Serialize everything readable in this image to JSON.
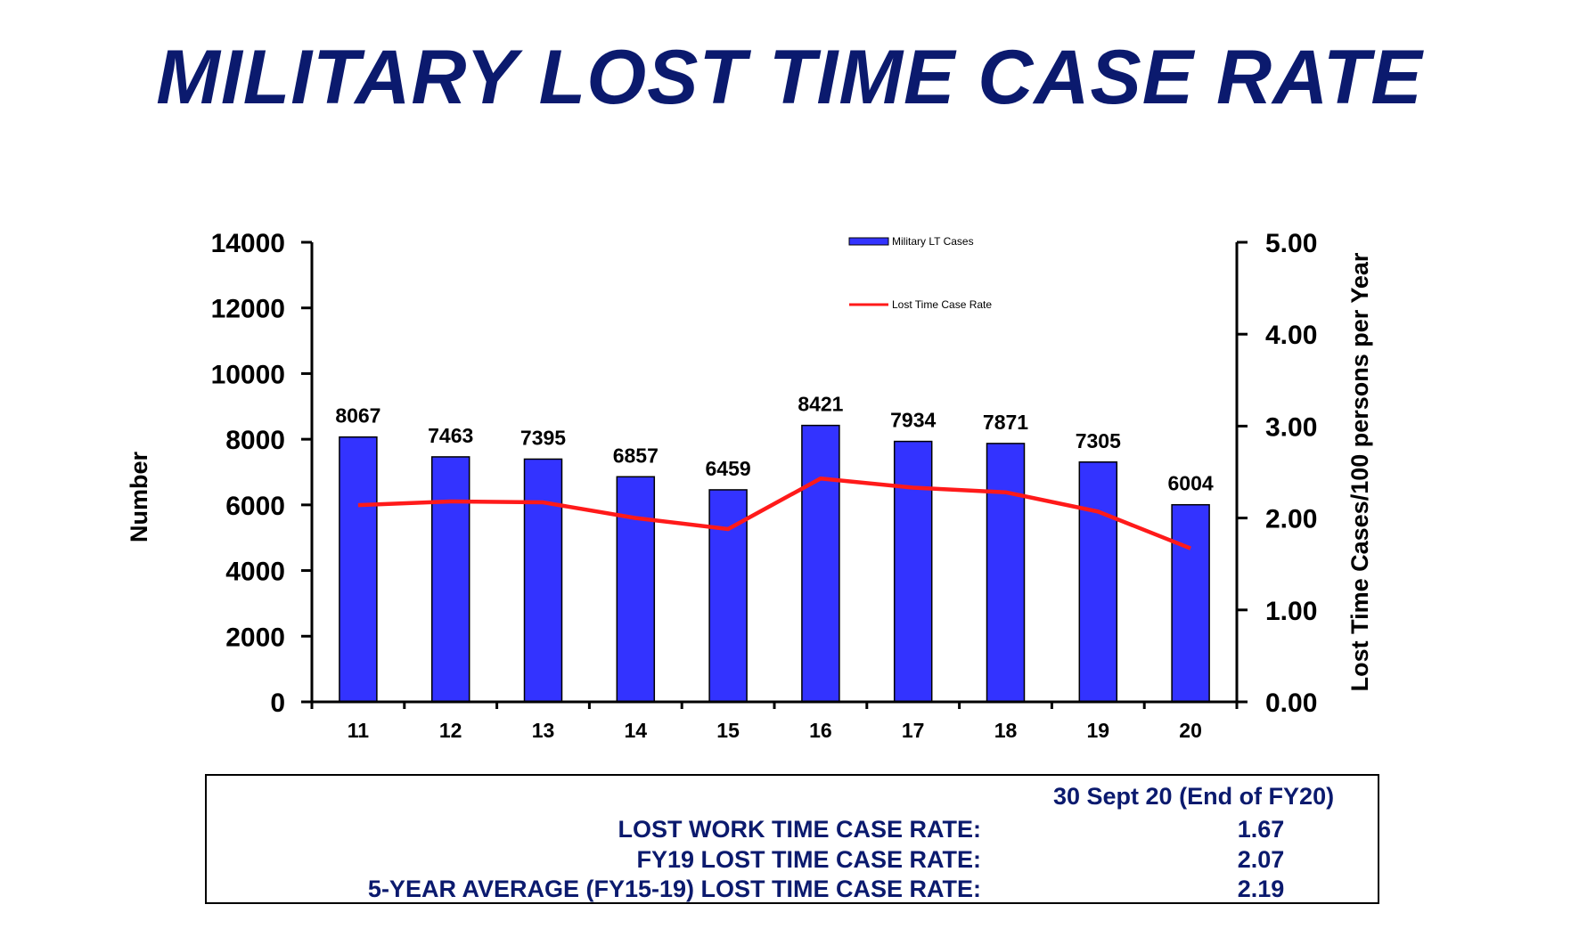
{
  "page_title": "MILITARY LOST TIME CASE RATE",
  "chart_data": {
    "type": "bar",
    "categories": [
      "11",
      "12",
      "13",
      "14",
      "15",
      "16",
      "17",
      "18",
      "19",
      "20"
    ],
    "series": [
      {
        "name": "Military LT Cases",
        "type": "bar",
        "axis": "left",
        "color": "#3333ff",
        "values": [
          8067,
          7463,
          7395,
          6857,
          6459,
          8421,
          7934,
          7871,
          7305,
          6004
        ],
        "data_labels": [
          "8067",
          "7463",
          "7395",
          "6857",
          "6459",
          "8421",
          "7934",
          "7871",
          "7305",
          "6004"
        ]
      },
      {
        "name": "Lost Time Case Rate",
        "type": "line",
        "axis": "right",
        "color": "#ff1a1a",
        "values": [
          2.14,
          2.18,
          2.17,
          2.0,
          1.88,
          2.43,
          2.33,
          2.28,
          2.07,
          1.67
        ]
      }
    ],
    "ylabel": "Number",
    "y2label": "Lost Time Cases/100 persons per Year",
    "ylim": [
      0,
      14000
    ],
    "y2lim": [
      0,
      5
    ],
    "yticks": [
      "0",
      "2000",
      "4000",
      "6000",
      "8000",
      "10000",
      "12000",
      "14000"
    ],
    "y2ticks": [
      "0.00",
      "1.00",
      "2.00",
      "3.00",
      "4.00",
      "5.00"
    ],
    "legend_position": "top-center",
    "grid": false
  },
  "summary": {
    "header": "30 Sept 20 (End of FY20)",
    "rows": [
      {
        "label": "LOST WORK TIME CASE RATE:",
        "value": "1.67"
      },
      {
        "label": "FY19 LOST TIME CASE RATE:",
        "value": "2.07"
      },
      {
        "label": "5-YEAR AVERAGE (FY15-19) LOST TIME CASE RATE:",
        "value": "2.19"
      }
    ]
  }
}
